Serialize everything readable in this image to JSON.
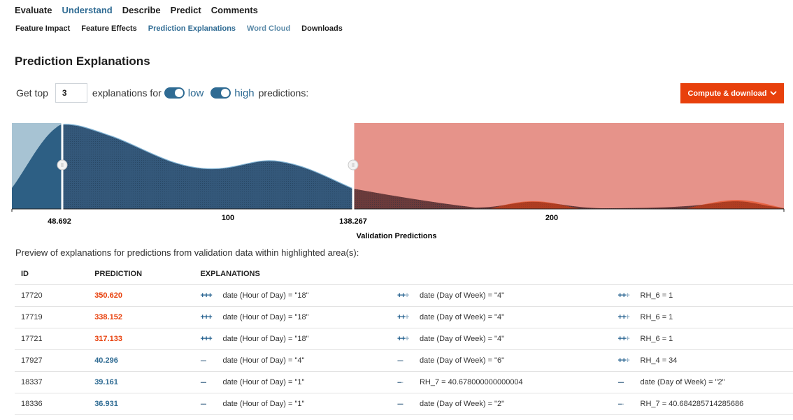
{
  "nav": {
    "tabs": [
      "Evaluate",
      "Understand",
      "Describe",
      "Predict",
      "Comments"
    ],
    "active_tab": 1,
    "subtabs": [
      "Feature Impact",
      "Feature Effects",
      "Prediction Explanations",
      "Word Cloud",
      "Downloads"
    ],
    "active_subtab": 2
  },
  "page_title": "Prediction Explanations",
  "controls": {
    "get_top_label": "Get top",
    "top_n_value": "3",
    "explanations_for_label": "explanations for",
    "low_label": "low",
    "high_label": "high",
    "predictions_label": "predictions:",
    "compute_label": "Compute & download",
    "compute_icon": "chevron-down-icon"
  },
  "chart": {
    "x_axis_label": "Validation Predictions",
    "low_threshold": "48.692",
    "high_threshold": "138.267",
    "ticks": [
      "100",
      "200"
    ]
  },
  "preview_text": "Preview of explanations for predictions from validation data within highlighted area(s):",
  "table": {
    "columns": [
      "ID",
      "PREDICTION",
      "EXPLANATIONS"
    ],
    "rows": [
      {
        "id": "17720",
        "prediction": "350.620",
        "level": "high",
        "expl": [
          {
            "sign": "+++",
            "strength": 3,
            "text": "date (Hour of Day) = \"18\""
          },
          {
            "sign": "++",
            "strength": 2,
            "text": "date (Day of Week) = \"4\""
          },
          {
            "sign": "++",
            "strength": 2,
            "text": "RH_6 = 1"
          }
        ]
      },
      {
        "id": "17719",
        "prediction": "338.152",
        "level": "high",
        "expl": [
          {
            "sign": "+++",
            "strength": 3,
            "text": "date (Hour of Day) = \"18\""
          },
          {
            "sign": "++",
            "strength": 2,
            "text": "date (Day of Week) = \"4\""
          },
          {
            "sign": "++",
            "strength": 2,
            "text": "RH_6 = 1"
          }
        ]
      },
      {
        "id": "17721",
        "prediction": "317.133",
        "level": "high",
        "expl": [
          {
            "sign": "+++",
            "strength": 3,
            "text": "date (Hour of Day) = \"18\""
          },
          {
            "sign": "++",
            "strength": 2,
            "text": "date (Day of Week) = \"4\""
          },
          {
            "sign": "++",
            "strength": 2,
            "text": "RH_6 = 1"
          }
        ]
      },
      {
        "id": "17927",
        "prediction": "40.296",
        "level": "low",
        "expl": [
          {
            "sign": "---",
            "strength": 3,
            "text": "date (Hour of Day) = \"4\""
          },
          {
            "sign": "---",
            "strength": 3,
            "text": "date (Day of Week) = \"6\""
          },
          {
            "sign": "++",
            "strength": 2,
            "text": "RH_4 = 34"
          }
        ]
      },
      {
        "id": "18337",
        "prediction": "39.161",
        "level": "low",
        "expl": [
          {
            "sign": "---",
            "strength": 3,
            "text": "date (Hour of Day) = \"1\""
          },
          {
            "sign": "--",
            "strength": 2,
            "text": "RH_7 = 40.678000000000004"
          },
          {
            "sign": "---",
            "strength": 3,
            "text": "date (Day of Week) = \"2\""
          }
        ]
      },
      {
        "id": "18336",
        "prediction": "36.931",
        "level": "low",
        "expl": [
          {
            "sign": "---",
            "strength": 3,
            "text": "date (Hour of Day) = \"1\""
          },
          {
            "sign": "---",
            "strength": 3,
            "text": "date (Day of Week) = \"2\""
          },
          {
            "sign": "--",
            "strength": 2,
            "text": "RH_7 = 40.684285714285686"
          }
        ]
      }
    ]
  },
  "colors": {
    "high": "#e8400c",
    "low": "#2f6b93",
    "positive": "#1f5d8c",
    "negative": "#5a7d99",
    "nav_active": "#2f6b93"
  }
}
